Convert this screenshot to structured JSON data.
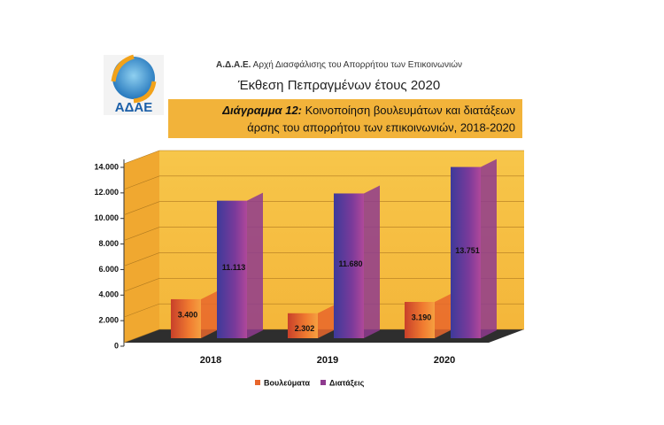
{
  "header": {
    "logo_text": "ΑΔΑΕ",
    "org_abbr": "Α.Δ.Α.Ε.",
    "org_name": "Αρχή Διασφάλισης του Απορρήτου των Επικοινωνιών",
    "report_title": "Έκθεση Πεπραγμένων έτους 2020"
  },
  "chart_data": {
    "type": "bar3d",
    "title_prefix": "Διάγραμμα 12:",
    "title": [
      "Κοινοποίηση βουλευμάτων και διατάξεων",
      "άρσης του απορρήτου των επικοινωνιών, 2018-2020"
    ],
    "categories": [
      "2018",
      "2019",
      "2020"
    ],
    "series": [
      {
        "name": "Βουλεύματα",
        "color": "#e8662c",
        "values": [
          3400,
          2302,
          3190
        ],
        "value_labels": [
          "3.400",
          "2.302",
          "3.190"
        ]
      },
      {
        "name": "Διατάξεις",
        "color": "#8e3a8e",
        "values": [
          11113,
          11680,
          13751
        ],
        "value_labels": [
          "11.113",
          "11.680",
          "13.751"
        ]
      }
    ],
    "ylim": [
      0,
      14000
    ],
    "yticks": [
      0,
      {
        "value": 2000,
        "label": "2.000"
      },
      {
        "value": 4000,
        "label": "4.000"
      },
      {
        "value": 6000,
        "label": "6.000"
      },
      {
        "value": 8000,
        "label": "8.000"
      },
      {
        "value": 10000,
        "label": "10.000"
      },
      {
        "value": 12000,
        "label": "12.000"
      },
      {
        "value": 14000,
        "label": "14.000"
      }
    ],
    "grid": true,
    "legend": "bottom"
  }
}
